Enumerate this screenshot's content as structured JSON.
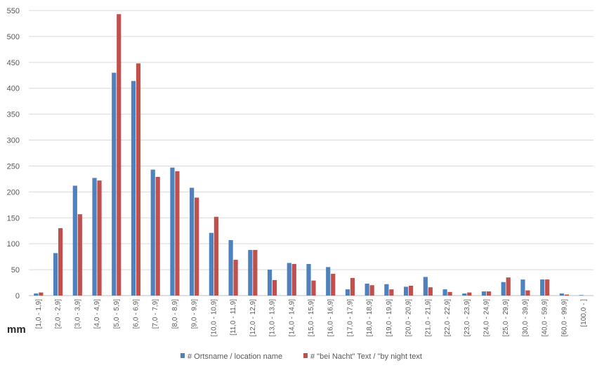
{
  "chart_data": {
    "type": "bar",
    "unit_label": "mm",
    "ylim": [
      0,
      550
    ],
    "y_ticks": [
      0,
      50,
      100,
      150,
      200,
      250,
      300,
      350,
      400,
      450,
      500,
      550
    ],
    "grid": true,
    "legend_position": "bottom",
    "categories": [
      "[1,0 - 1,9]",
      "[2,0 - 2,9]",
      "[3,0 - 3,9]",
      "[4,0 - 4,9]",
      "[5,0 - 5,9]",
      "[6,0 - 6,9]",
      "[7,0 - 7,9]",
      "[8,0 - 8,9]",
      "[9,0 - 9,9]",
      "[10,0 - 10,9]",
      "[11,0 - 11,9]",
      "[12,0 - 12,9]",
      "[13,0 - 13,9]",
      "[14,0 - 14,9]",
      "[15,0 - 15,9]",
      "[16,0 - 16,9]",
      "[17,0 - 17,9]",
      "[18,0 - 18,9]",
      "[19,0 - 19,9]",
      "[20,0 - 20,9]",
      "[21,0 - 21,9]",
      "[22,0 - 22,9]",
      "[23,0 - 23,9]",
      "[24,0 - 24,9]",
      "[25,0 - 29,9]",
      "[30,0 - 39,9]",
      "[40,0 - 59,9]",
      "[60,0 - 99,9]",
      "[100,0 - ]"
    ],
    "series": [
      {
        "name": "# Ortsname / location name",
        "color": "#4f81bd",
        "values": [
          4,
          82,
          212,
          227,
          430,
          414,
          243,
          247,
          208,
          121,
          107,
          88,
          50,
          63,
          61,
          55,
          12,
          23,
          22,
          17,
          36,
          12,
          4,
          8,
          26,
          31,
          31,
          4,
          1
        ]
      },
      {
        "name": "# \"bei Nacht\"  Text / \"by night text",
        "color": "#c0504d",
        "values": [
          6,
          130,
          157,
          222,
          543,
          448,
          229,
          240,
          189,
          152,
          69,
          88,
          30,
          61,
          29,
          42,
          34,
          20,
          12,
          19,
          16,
          7,
          6,
          8,
          35,
          10,
          31,
          2,
          0
        ]
      }
    ]
  }
}
